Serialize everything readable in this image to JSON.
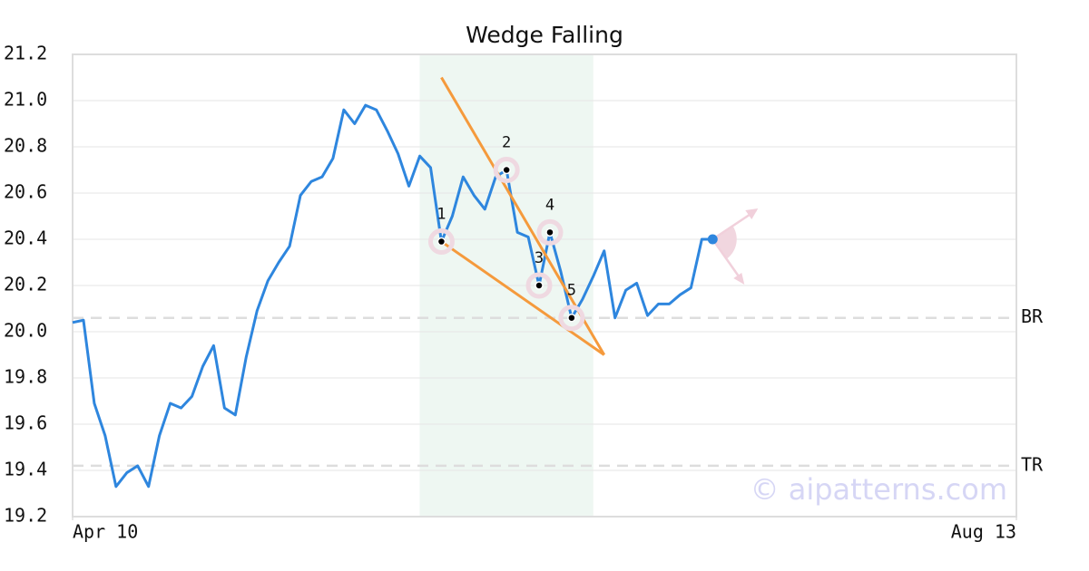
{
  "chart_data": {
    "type": "line",
    "title": "Wedge Falling",
    "watermark": "© aipatterns.com",
    "color": "#2e86de",
    "values": [
      20.04,
      20.05,
      19.69,
      19.55,
      19.33,
      19.39,
      19.42,
      19.33,
      19.55,
      19.69,
      19.67,
      19.72,
      19.85,
      19.94,
      19.67,
      19.64,
      19.89,
      20.09,
      20.22,
      20.3,
      20.37,
      20.59,
      20.65,
      20.67,
      20.75,
      20.96,
      20.9,
      20.98,
      20.96,
      20.87,
      20.77,
      20.63,
      20.76,
      20.71,
      20.39,
      20.5,
      20.67,
      20.59,
      20.53,
      20.67,
      20.7,
      20.43,
      20.41,
      20.2,
      20.43,
      20.26,
      20.06,
      20.14,
      20.24,
      20.35,
      20.06,
      20.18,
      20.21,
      20.07,
      20.12,
      20.12,
      20.16,
      20.19,
      20.4,
      20.4
    ],
    "xlim": [
      0,
      87
    ],
    "xticks": [
      {
        "value": 0,
        "label": "Apr 10"
      },
      {
        "value": 87,
        "label": "Aug 13"
      }
    ],
    "ylim": [
      19.2,
      21.2
    ],
    "yticks": [
      19.2,
      19.4,
      19.6,
      19.8,
      {
        "value": 20.0,
        "label": "20.0"
      },
      20.2,
      20.4,
      20.6,
      20.8,
      {
        "value": 21.0,
        "label": "21.0"
      },
      21.2
    ],
    "grid": true,
    "highlight": [
      32,
      48
    ],
    "highlight_color": "#eef7f2",
    "lines_color": "#f59a3c",
    "lines": [
      {
        "x": [
          34,
          49
        ],
        "y": [
          21.1,
          19.9
        ]
      },
      {
        "x": [
          34,
          49
        ],
        "y": [
          20.39,
          19.9
        ]
      }
    ],
    "pattern_points": [
      {
        "label": "1",
        "x": 34,
        "y": 20.39
      },
      {
        "label": "2",
        "x": 40,
        "y": 20.7
      },
      {
        "label": "3",
        "x": 43,
        "y": 20.2
      },
      {
        "label": "4",
        "x": 44,
        "y": 20.43
      },
      {
        "label": "5",
        "x": 46,
        "y": 20.06
      }
    ],
    "levels": [
      {
        "label": "BR",
        "value": 20.06
      },
      {
        "label": "TR",
        "value": 19.42
      }
    ]
  }
}
